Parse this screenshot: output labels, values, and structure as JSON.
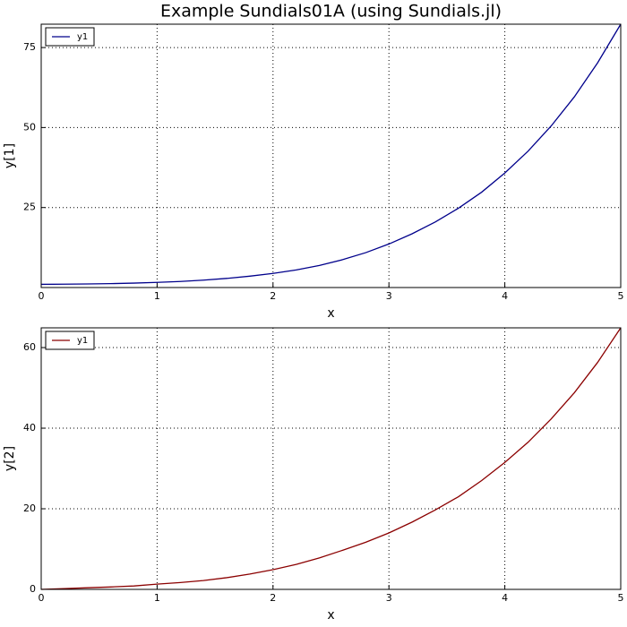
{
  "chart_data": [
    {
      "type": "line",
      "title": "Example Sundials01A (using Sundials.jl)",
      "xlabel": "x",
      "ylabel": "y[1]",
      "x": [
        0,
        0.2,
        0.4,
        0.6,
        0.8,
        1,
        1.2,
        1.4,
        1.6,
        1.8,
        2,
        2.2,
        2.4,
        2.6,
        2.8,
        3,
        3.2,
        3.4,
        3.6,
        3.8,
        4,
        4.2,
        4.4,
        4.6,
        4.8,
        5
      ],
      "series": [
        {
          "name": "y1",
          "color": "#00008b",
          "values": [
            1,
            1.05,
            1.12,
            1.22,
            1.38,
            1.6,
            1.9,
            2.3,
            2.85,
            3.55,
            4.4,
            5.5,
            6.9,
            8.7,
            10.9,
            13.6,
            16.8,
            20.5,
            24.8,
            29.8,
            35.8,
            42.6,
            50.5,
            59.6,
            70.2,
            82.3
          ]
        }
      ],
      "xlim": [
        0,
        5
      ],
      "xticks": [
        0,
        1,
        2,
        3,
        4,
        5
      ],
      "ylim": [
        0,
        82.3
      ],
      "yticks": [
        25,
        50,
        75
      ],
      "grid": true,
      "legend": "upper-left"
    },
    {
      "type": "line",
      "xlabel": "x",
      "ylabel": "y[2]",
      "x": [
        0,
        0.2,
        0.4,
        0.6,
        0.8,
        1,
        1.2,
        1.4,
        1.6,
        1.8,
        2,
        2.2,
        2.4,
        2.6,
        2.8,
        3,
        3.2,
        3.4,
        3.6,
        3.8,
        4,
        4.2,
        4.4,
        4.6,
        4.8,
        5
      ],
      "series": [
        {
          "name": "y1",
          "color": "#8b0000",
          "values": [
            0,
            0.2,
            0.4,
            0.6,
            0.85,
            1.3,
            1.7,
            2.2,
            2.9,
            3.8,
            4.9,
            6.2,
            7.8,
            9.7,
            11.7,
            14,
            16.7,
            19.7,
            23,
            27,
            31.5,
            36.5,
            42.3,
            48.8,
            56.3,
            64.9
          ]
        }
      ],
      "xlim": [
        0,
        5
      ],
      "xticks": [
        0,
        1,
        2,
        3,
        4,
        5
      ],
      "ylim": [
        0,
        64.9
      ],
      "yticks": [
        0,
        20,
        40,
        60
      ],
      "grid": true,
      "legend": "upper-left"
    }
  ]
}
